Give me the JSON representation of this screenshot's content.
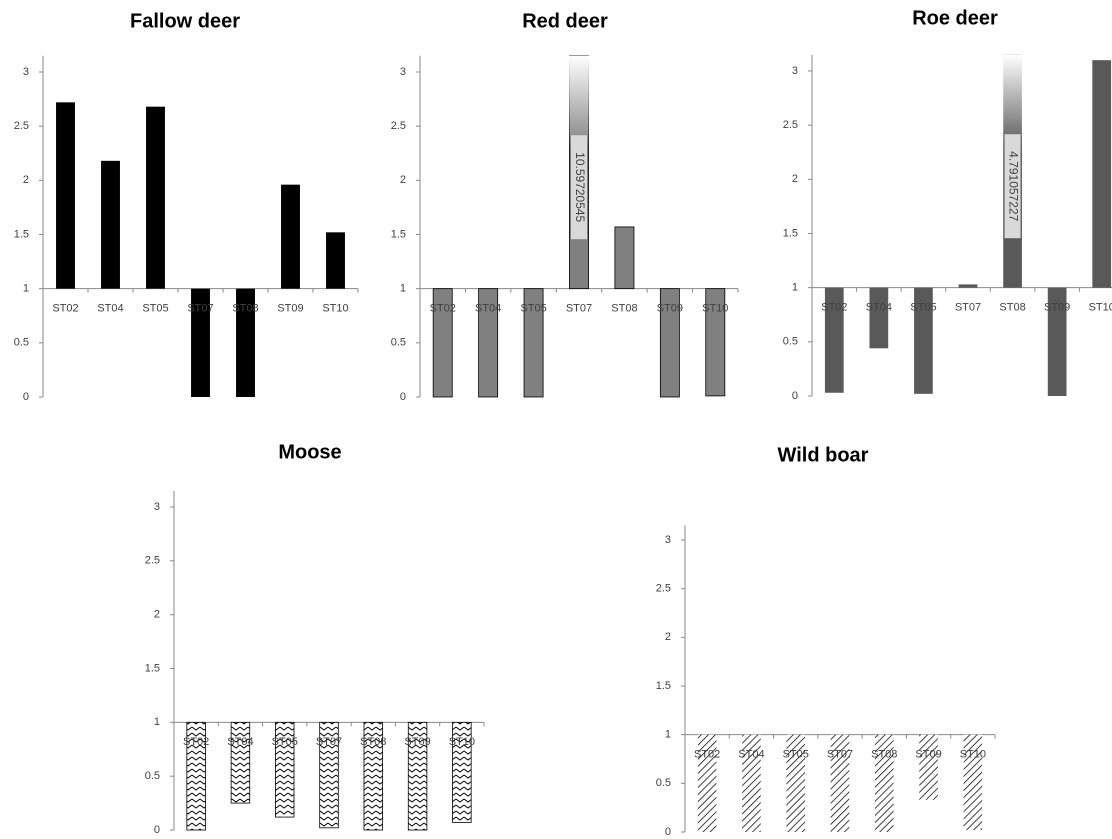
{
  "chart_data": [
    {
      "type": "bar",
      "title": "Fallow deer",
      "categories": [
        "ST02",
        "ST04",
        "ST05",
        "ST07",
        "ST08",
        "ST09",
        "ST10"
      ],
      "values": [
        2.72,
        2.18,
        2.68,
        0,
        0,
        1.96,
        1.52
      ],
      "baseline": 1,
      "color": "#000000",
      "ylim": [
        0,
        3.15
      ],
      "yticks": [
        0,
        0.5,
        1,
        1.5,
        2,
        2.5,
        3
      ]
    },
    {
      "type": "bar",
      "title": "Red deer",
      "categories": [
        "ST02",
        "ST04",
        "ST05",
        "ST07",
        "ST08",
        "ST09",
        "ST10"
      ],
      "values": [
        0,
        0,
        0,
        10.59720545,
        1.57,
        0,
        0.01
      ],
      "value_labels": [
        null,
        null,
        null,
        "10.59720545",
        null,
        null,
        null
      ],
      "baseline": 1,
      "color": "#808080",
      "edgecolor": "#000000",
      "ylim": [
        0,
        3.15
      ],
      "yticks": [
        0,
        0.5,
        1,
        1.5,
        2,
        2.5,
        3
      ]
    },
    {
      "type": "bar",
      "title": "Roe deer",
      "categories": [
        "ST02",
        "ST04",
        "ST05",
        "ST07",
        "ST08",
        "ST09",
        "ST10"
      ],
      "values": [
        0.03,
        0.44,
        0.02,
        1.03,
        4.791057227,
        0,
        3.1
      ],
      "value_labels": [
        null,
        null,
        null,
        null,
        "4.791057227",
        null,
        null
      ],
      "baseline": 1,
      "color": "#595959",
      "ylim": [
        0,
        3.15
      ],
      "yticks": [
        0,
        0.5,
        1,
        1.5,
        2,
        2.5,
        3
      ]
    },
    {
      "type": "bar",
      "title": "Moose",
      "categories": [
        "ST02",
        "ST04",
        "ST05",
        "ST07",
        "ST08",
        "ST09",
        "ST10"
      ],
      "values": [
        0,
        0.25,
        0.12,
        0.02,
        0,
        0,
        0.07
      ],
      "baseline": 1,
      "color": "#000000",
      "pattern": "zigzag",
      "edgecolor": "#000000",
      "ylim": [
        0,
        3.15
      ],
      "yticks": [
        0,
        0.5,
        1,
        1.5,
        2,
        2.5,
        3
      ]
    },
    {
      "type": "bar",
      "title": "Wild boar",
      "categories": [
        "ST02",
        "ST04",
        "ST05",
        "ST07",
        "ST08",
        "ST09",
        "ST10"
      ],
      "values": [
        0,
        0,
        0,
        0,
        0,
        0.33,
        0.02
      ],
      "baseline": 1,
      "color": "#000000",
      "pattern": "diagonal",
      "ylim": [
        0,
        3.15
      ],
      "yticks": [
        0,
        0.5,
        1,
        1.5,
        2,
        2.5,
        3
      ]
    }
  ]
}
